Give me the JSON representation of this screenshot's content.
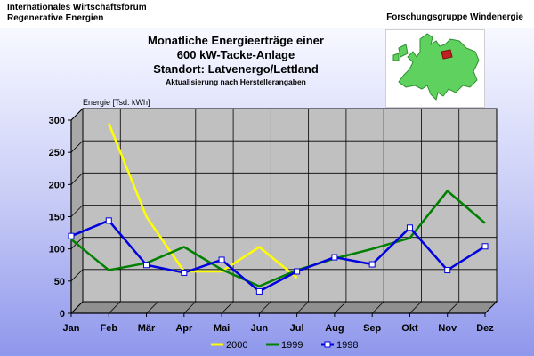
{
  "header": {
    "org_line1": "Internationales Wirtschaftsforum",
    "org_line2": "Regenerative Energien",
    "group": "Forschungsgruppe Windenergie"
  },
  "title": {
    "line1": "Monatliche Energieerträge einer",
    "line2": "600 kW-Tacke-Anlage",
    "line3": "Standort: Latvenergo/Lettland",
    "subtitle": "Aktualisierung nach Herstellerangaben"
  },
  "map": {
    "icon": "europe-map-icon"
  },
  "chart_data": {
    "type": "line",
    "ylabel": "Energie [Tsd. kWh]",
    "xlabel": "",
    "categories": [
      "Jan",
      "Feb",
      "Mär",
      "Apr",
      "Mai",
      "Jun",
      "Jul",
      "Aug",
      "Sep",
      "Okt",
      "Nov",
      "Dez"
    ],
    "ylim": [
      0,
      300
    ],
    "yticks": [
      0,
      50,
      100,
      150,
      200,
      250,
      300
    ],
    "grid": true,
    "legend_position": "bottom",
    "series": [
      {
        "name": "2000",
        "color": "#ffff00",
        "marker": "none",
        "values": [
          null,
          295,
          150,
          65,
          65,
          103,
          55,
          null,
          null,
          null,
          null,
          null
        ]
      },
      {
        "name": "1999",
        "color": "#008000",
        "marker": "none",
        "values": [
          115,
          67,
          78,
          103,
          68,
          42,
          67,
          85,
          100,
          117,
          190,
          140
        ]
      },
      {
        "name": "1998",
        "color": "#0000e0",
        "marker": "square",
        "values": [
          120,
          144,
          75,
          63,
          83,
          34,
          65,
          87,
          76,
          133,
          67,
          104
        ]
      }
    ]
  }
}
